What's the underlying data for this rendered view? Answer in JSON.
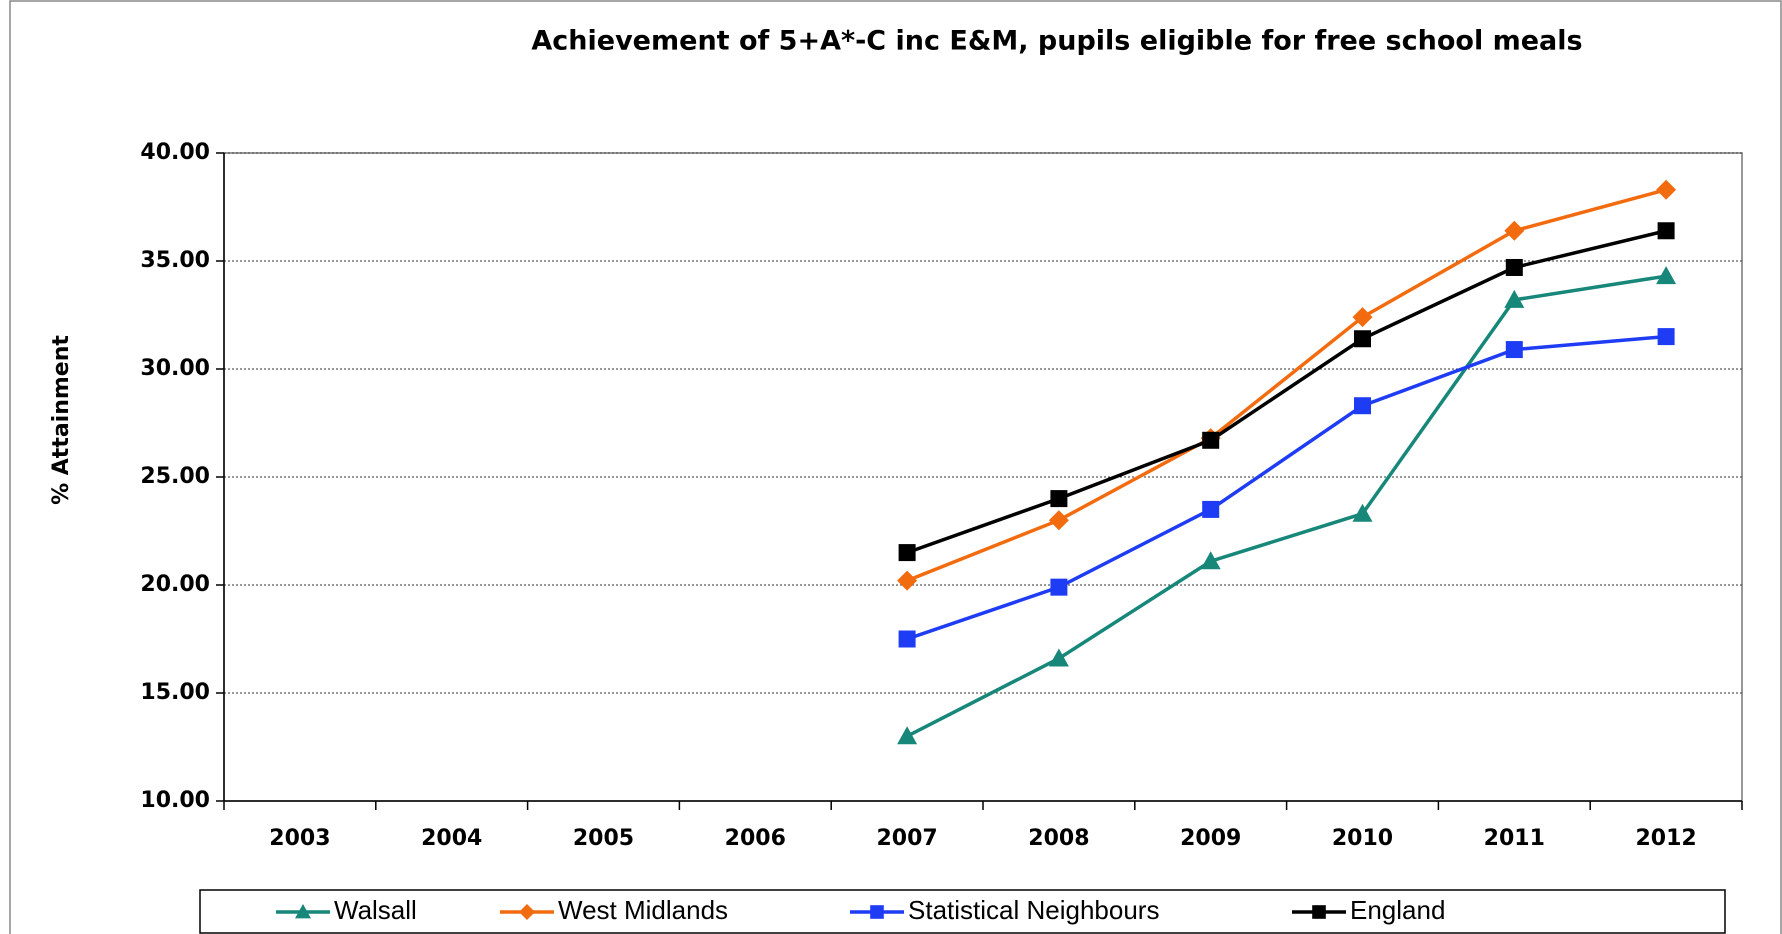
{
  "chart_data": {
    "type": "line",
    "title": "Achievement of 5+A*-C inc E&M, pupils eligible for free school meals",
    "y_label": "% Attainment",
    "categories": [
      "2003",
      "2004",
      "2005",
      "2006",
      "2007",
      "2008",
      "2009",
      "2010",
      "2011",
      "2012"
    ],
    "series": [
      {
        "name": "Walsall",
        "color": "#17877a",
        "marker": "triangle",
        "values": [
          null,
          null,
          null,
          null,
          13.0,
          16.6,
          21.1,
          23.3,
          33.2,
          34.3
        ]
      },
      {
        "name": "West Midlands",
        "color": "#f26b0f",
        "marker": "diamond",
        "values": [
          null,
          null,
          null,
          null,
          20.2,
          23.0,
          26.8,
          32.4,
          36.4,
          38.3
        ]
      },
      {
        "name": "Statistical Neighbours",
        "color": "#1f3cf5",
        "marker": "square",
        "values": [
          null,
          null,
          null,
          null,
          17.5,
          19.9,
          23.5,
          28.3,
          30.9,
          31.5
        ]
      },
      {
        "name": "England",
        "color": "#000000",
        "marker": "square",
        "values": [
          null,
          null,
          null,
          null,
          21.5,
          24.0,
          26.7,
          31.4,
          34.7,
          36.4
        ]
      }
    ],
    "ylim": [
      10,
      40
    ],
    "yticks": [
      {
        "value": 10,
        "label": "10.00"
      },
      {
        "value": 15,
        "label": "15.00"
      },
      {
        "value": 20,
        "label": "20.00"
      },
      {
        "value": 25,
        "label": "25.00"
      },
      {
        "value": 30,
        "label": "30.00"
      },
      {
        "value": 35,
        "label": "35.00"
      },
      {
        "value": 40,
        "label": "40.00"
      }
    ],
    "grid": true,
    "legend": "bottom"
  }
}
